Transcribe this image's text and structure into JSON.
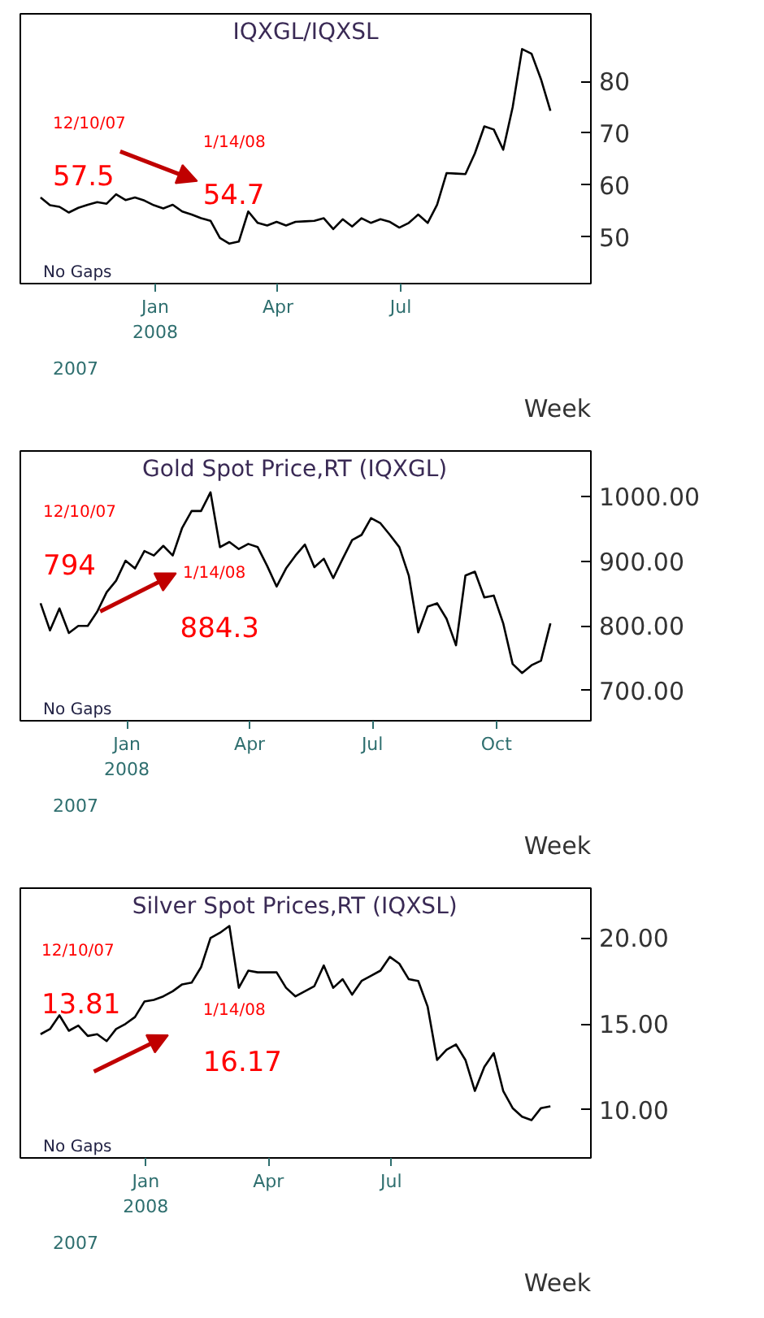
{
  "chart_data": [
    {
      "type": "line",
      "title": "IQXGL/IQXSL",
      "xlabel": "Week",
      "annotations": [
        "No Gaps",
        "12/10/07",
        "57.5",
        "1/14/08",
        "54.7",
        "2007"
      ],
      "x": [
        "2007-10-08",
        "2007-10-15",
        "2007-10-22",
        "2007-10-29",
        "2007-11-05",
        "2007-11-12",
        "2007-11-19",
        "2007-11-26",
        "2007-12-03",
        "2007-12-10",
        "2007-12-17",
        "2007-12-24",
        "2007-12-31",
        "2008-01-07",
        "2008-01-14",
        "2008-01-21",
        "2008-01-28",
        "2008-02-04",
        "2008-02-11",
        "2008-02-18",
        "2008-02-25",
        "2008-03-03",
        "2008-03-10",
        "2008-03-17",
        "2008-03-24",
        "2008-03-31",
        "2008-04-07",
        "2008-04-14",
        "2008-04-21",
        "2008-04-28",
        "2008-05-05",
        "2008-05-12",
        "2008-05-19",
        "2008-05-26",
        "2008-06-02",
        "2008-06-09",
        "2008-06-16",
        "2008-06-23",
        "2008-06-30",
        "2008-07-07",
        "2008-07-14",
        "2008-07-21",
        "2008-07-28",
        "2008-08-04",
        "2008-08-11",
        "2008-08-18",
        "2008-08-25",
        "2008-09-01",
        "2008-09-08",
        "2008-09-15",
        "2008-09-22",
        "2008-09-29",
        "2008-10-06",
        "2008-10-13",
        "2008-10-20"
      ],
      "series": [
        {
          "color": "#000000",
          "values": [
            57.6,
            56.1,
            55.8,
            54.7,
            55.6,
            56.2,
            56.7,
            56.4,
            58.2,
            57.1,
            57.6,
            57.0,
            56.1,
            55.5,
            56.2,
            54.9,
            54.3,
            53.6,
            53.1,
            49.8,
            48.7,
            49.1,
            54.9,
            52.7,
            52.2,
            52.9,
            52.2,
            52.9,
            53.0,
            53.1,
            53.6,
            51.5,
            53.4,
            52.0,
            53.6,
            52.7,
            53.4,
            52.9,
            51.8,
            52.7,
            54.3,
            52.7,
            56.2,
            62.3,
            62.2,
            62.1,
            66.1,
            71.3,
            70.7,
            66.8,
            75.0,
            86.2,
            85.3,
            80.4,
            74.3
          ]
        }
      ],
      "xlim": [
        "2007-09-23",
        "2008-11-19"
      ],
      "xticks": [
        {
          "value": "2008-01-01",
          "label": "Jan\n2008"
        },
        {
          "value": "2008-04-01",
          "label": "Apr"
        },
        {
          "value": "2008-07-01",
          "label": "Jul"
        }
      ],
      "ylim": [
        41,
        93
      ],
      "yticks": [
        50,
        60,
        70,
        80
      ]
    },
    {
      "type": "line",
      "title": "Gold  Spot  Price,RT  (IQXGL)",
      "xlabel": "Week",
      "annotations": [
        "No Gaps",
        "12/10/07",
        "794",
        "1/14/08",
        "884.3",
        "2007"
      ],
      "x": [
        "2007-10-29",
        "2007-11-05",
        "2007-11-12",
        "2007-11-19",
        "2007-11-26",
        "2007-12-03",
        "2007-12-10",
        "2007-12-17",
        "2007-12-24",
        "2007-12-31",
        "2008-01-07",
        "2008-01-14",
        "2008-01-21",
        "2008-01-28",
        "2008-02-04",
        "2008-02-11",
        "2008-02-18",
        "2008-02-25",
        "2008-03-03",
        "2008-03-10",
        "2008-03-17",
        "2008-03-24",
        "2008-03-31",
        "2008-04-07",
        "2008-04-14",
        "2008-04-21",
        "2008-04-28",
        "2008-05-05",
        "2008-05-12",
        "2008-05-19",
        "2008-05-26",
        "2008-06-02",
        "2008-06-09",
        "2008-06-16",
        "2008-06-23",
        "2008-06-30",
        "2008-07-07",
        "2008-07-14",
        "2008-07-21",
        "2008-07-28",
        "2008-08-04",
        "2008-08-11",
        "2008-08-18",
        "2008-08-25",
        "2008-09-01",
        "2008-09-08",
        "2008-09-15",
        "2008-09-22",
        "2008-09-29",
        "2008-10-06",
        "2008-10-13",
        "2008-10-20",
        "2008-10-27",
        "2008-11-03",
        "2008-11-10"
      ],
      "series": [
        {
          "color": "#000000",
          "values": [
            835,
            793,
            827,
            789,
            800,
            800,
            822,
            852,
            870,
            901,
            889,
            916,
            909,
            924,
            909,
            952,
            978,
            978,
            1007,
            922,
            930,
            919,
            927,
            922,
            893,
            861,
            889,
            909,
            926,
            891,
            904,
            874,
            904,
            933,
            941,
            967,
            959,
            941,
            922,
            878,
            790,
            830,
            835,
            811,
            770,
            878,
            884,
            844,
            847,
            804,
            741,
            727,
            739,
            746,
            804
          ]
        }
      ],
      "xlim": [
        "2007-10-14",
        "2008-12-10"
      ],
      "xticks": [
        {
          "value": "2008-01-01",
          "label": "Jan\n2008"
        },
        {
          "value": "2008-04-01",
          "label": "Apr"
        },
        {
          "value": "2008-07-01",
          "label": "Jul"
        },
        {
          "value": "2008-10-01",
          "label": "Oct"
        }
      ],
      "ylim": [
        653,
        1071
      ],
      "yticks": [
        {
          "value": 700,
          "label": "700.00"
        },
        {
          "value": 800,
          "label": "800.00"
        },
        {
          "value": 900,
          "label": "900.00"
        },
        {
          "value": 1000,
          "label": "1000.00"
        }
      ]
    },
    {
      "type": "line",
      "title": "Silver  Spot  Prices,RT  (IQXSL)",
      "xlabel": "Week",
      "annotations": [
        "No Gaps",
        "12/10/07",
        "13.81",
        "1/14/08",
        "16.17",
        "2007"
      ],
      "x": [
        "2007-10-15",
        "2007-10-22",
        "2007-10-29",
        "2007-11-05",
        "2007-11-12",
        "2007-11-19",
        "2007-11-26",
        "2007-12-03",
        "2007-12-10",
        "2007-12-17",
        "2007-12-24",
        "2007-12-31",
        "2008-01-07",
        "2008-01-14",
        "2008-01-21",
        "2008-01-28",
        "2008-02-04",
        "2008-02-11",
        "2008-02-18",
        "2008-02-25",
        "2008-03-03",
        "2008-03-10",
        "2008-03-17",
        "2008-03-24",
        "2008-03-31",
        "2008-04-07",
        "2008-04-14",
        "2008-04-21",
        "2008-04-28",
        "2008-05-05",
        "2008-05-12",
        "2008-05-19",
        "2008-05-26",
        "2008-06-02",
        "2008-06-09",
        "2008-06-16",
        "2008-06-23",
        "2008-06-30",
        "2008-07-07",
        "2008-07-14",
        "2008-07-21",
        "2008-07-28",
        "2008-08-04",
        "2008-08-11",
        "2008-08-18",
        "2008-08-25",
        "2008-09-01",
        "2008-09-08",
        "2008-09-15",
        "2008-09-22",
        "2008-09-29",
        "2008-10-06",
        "2008-10-13",
        "2008-10-20",
        "2008-10-27"
      ],
      "series": [
        {
          "color": "#000000",
          "values": [
            14.4,
            14.7,
            15.5,
            14.6,
            14.9,
            14.3,
            14.4,
            14.0,
            14.7,
            15.0,
            15.4,
            16.3,
            16.4,
            16.6,
            16.9,
            17.3,
            17.4,
            18.3,
            20.0,
            20.3,
            20.7,
            17.1,
            18.1,
            18.0,
            18.0,
            18.0,
            17.1,
            16.6,
            16.9,
            17.2,
            18.4,
            17.1,
            17.6,
            16.7,
            17.5,
            17.8,
            18.1,
            18.9,
            18.5,
            17.6,
            17.5,
            16.0,
            12.9,
            13.5,
            13.8,
            12.9,
            11.1,
            12.5,
            13.3,
            11.1,
            10.1,
            9.6,
            9.4,
            10.1,
            10.2
          ]
        }
      ],
      "xlim": [
        "2007-09-30",
        "2008-11-26"
      ],
      "xticks": [
        {
          "value": "2008-01-01",
          "label": "Jan\n2008"
        },
        {
          "value": "2008-04-01",
          "label": "Apr"
        },
        {
          "value": "2008-07-01",
          "label": "Jul"
        }
      ],
      "ylim": [
        7.2,
        22.9
      ],
      "yticks": [
        {
          "value": 10,
          "label": "10.00"
        },
        {
          "value": 15,
          "label": "15.00"
        },
        {
          "value": 20,
          "label": "20.00"
        }
      ]
    }
  ]
}
